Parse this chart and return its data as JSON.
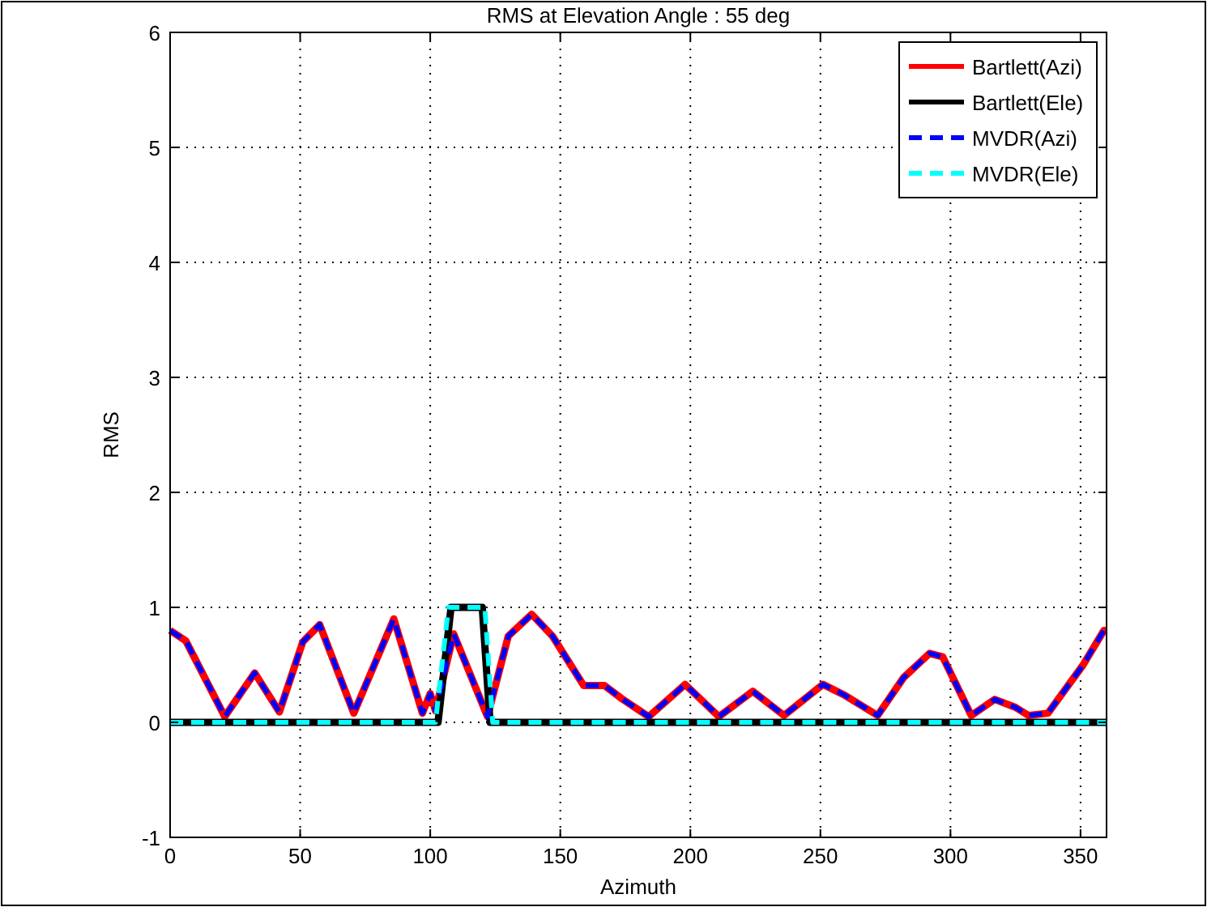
{
  "chart_data": {
    "type": "line",
    "title": "RMS at Elevation Angle : 55 deg",
    "xlabel": "Azimuth",
    "ylabel": "RMS",
    "xlim": [
      0,
      360
    ],
    "xticks": [
      0,
      50,
      100,
      150,
      200,
      250,
      300,
      350
    ],
    "ylim": [
      -1,
      6
    ],
    "yticks": [
      -1,
      0,
      1,
      2,
      3,
      4,
      5,
      6
    ],
    "grid": true,
    "legend": "top right",
    "marker": "none",
    "series": [
      {
        "name": "Bartlett(Azi)",
        "color": "#ff0000",
        "line_style": "solid",
        "x": [
          0,
          6,
          21,
          32.5,
          42,
          51,
          57.5,
          70.6,
          86,
          97,
          100,
          102,
          109,
          122,
          130,
          139,
          147,
          159,
          167,
          174,
          184,
          198,
          211,
          224,
          236,
          251,
          259,
          272,
          282,
          292,
          297,
          308,
          317,
          325,
          330,
          337.5,
          351,
          359,
          360
        ],
        "values": [
          0.8,
          0.71,
          0.05,
          0.43,
          0.09,
          0.7,
          0.85,
          0.08,
          0.9,
          0.08,
          0.25,
          0.1,
          0.77,
          0.05,
          0.75,
          0.94,
          0.75,
          0.32,
          0.32,
          0.2,
          0.05,
          0.33,
          0.05,
          0.27,
          0.06,
          0.33,
          0.24,
          0.06,
          0.39,
          0.6,
          0.57,
          0.06,
          0.2,
          0.13,
          0.06,
          0.08,
          0.5,
          0.8,
          0.8
        ]
      },
      {
        "name": "Bartlett(Ele)",
        "color": "#000000",
        "line_style": "solid",
        "x": [
          0,
          103,
          108,
          120,
          123,
          360
        ],
        "values": [
          0,
          0,
          1,
          1,
          0,
          0
        ]
      },
      {
        "name": "MVDR(Azi)",
        "color": "#0000ff",
        "line_style": "dashed",
        "x": [
          0,
          6,
          21,
          32.5,
          42,
          51,
          57.5,
          70.6,
          86,
          97,
          100,
          102,
          109,
          122,
          130,
          139,
          147,
          159,
          167,
          174,
          184,
          198,
          211,
          224,
          236,
          251,
          259,
          272,
          282,
          292,
          297,
          308,
          317,
          325,
          330,
          337.5,
          351,
          359,
          360
        ],
        "values": [
          0.8,
          0.71,
          0.05,
          0.43,
          0.09,
          0.7,
          0.85,
          0.08,
          0.9,
          0.08,
          0.25,
          0.1,
          0.77,
          0.05,
          0.75,
          0.94,
          0.75,
          0.32,
          0.32,
          0.2,
          0.05,
          0.33,
          0.05,
          0.27,
          0.06,
          0.33,
          0.24,
          0.06,
          0.39,
          0.6,
          0.57,
          0.06,
          0.2,
          0.13,
          0.06,
          0.08,
          0.5,
          0.8,
          0.8
        ]
      },
      {
        "name": "MVDR(Ele)",
        "color": "#00ffff",
        "line_style": "dashed",
        "x": [
          0,
          102,
          107,
          121,
          124,
          360
        ],
        "values": [
          0,
          0,
          1,
          1,
          0,
          0
        ]
      }
    ]
  }
}
